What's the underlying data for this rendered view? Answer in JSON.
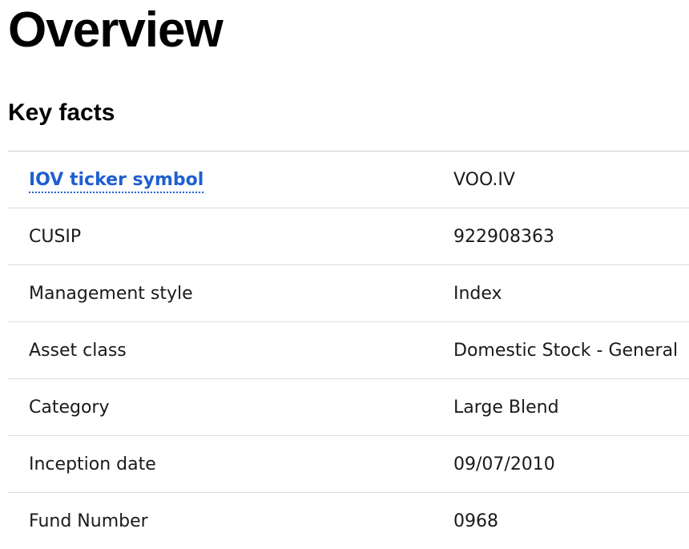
{
  "title": "Overview",
  "section": "Key facts",
  "rows": [
    {
      "label": "IOV ticker symbol",
      "value": "VOO.IV"
    },
    {
      "label": "CUSIP",
      "value": "922908363"
    },
    {
      "label": "Management style",
      "value": "Index"
    },
    {
      "label": "Asset class",
      "value": "Domestic Stock - General"
    },
    {
      "label": "Category",
      "value": "Large Blend"
    },
    {
      "label": "Inception date",
      "value": "09/07/2010"
    },
    {
      "label": "Fund Number",
      "value": "0968"
    }
  ],
  "colors": {
    "link": "#1f5fd0"
  }
}
